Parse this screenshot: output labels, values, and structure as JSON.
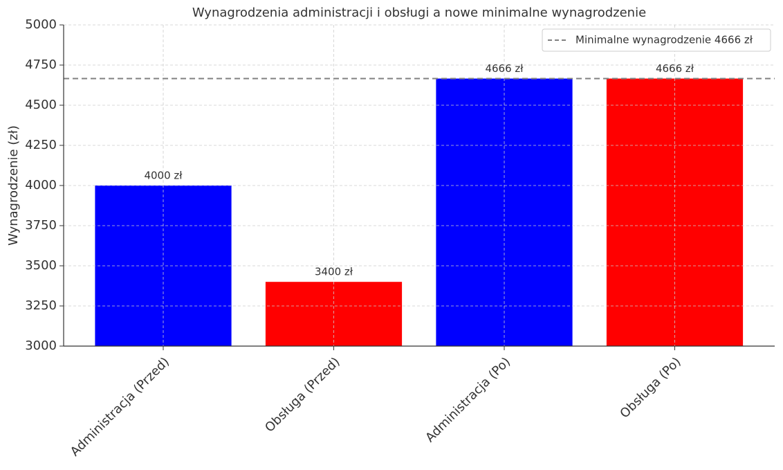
{
  "chart_data": {
    "type": "bar",
    "title": "Wynagrodzenia administracji i obsługi a nowe minimalne wynagrodzenie",
    "ylabel": "Wynagrodzenie (zł)",
    "categories": [
      "Administracja (Przed)",
      "Obsługa (Przed)",
      "Administracja (Po)",
      "Obsługa (Po)"
    ],
    "values": [
      4000,
      3400,
      4666,
      4666
    ],
    "value_labels": [
      "4000 zł",
      "3400 zł",
      "4666 zł",
      "4666 zł"
    ],
    "colors": [
      "#0000ff",
      "#ff0000",
      "#0000ff",
      "#ff0000"
    ],
    "reference_line": {
      "value": 4666,
      "label": "Minimalne wynagrodzenie 4666 zł",
      "color": "#808080",
      "style": "dashed"
    },
    "ylim": [
      3000,
      5000
    ],
    "yticks": [
      3000,
      3250,
      3500,
      3750,
      4000,
      4250,
      4500,
      4750,
      5000
    ],
    "grid": true,
    "legend": "upper right"
  }
}
